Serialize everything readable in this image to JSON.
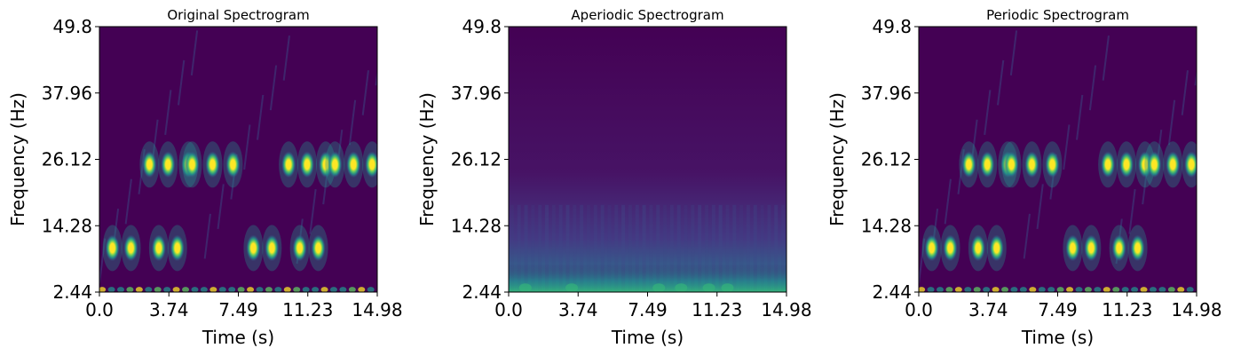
{
  "colors": {
    "background": "#440154",
    "low": "#482878",
    "mid": "#21918c",
    "high": "#fde725"
  },
  "chart_data": [
    {
      "type": "heatmap",
      "title": "Original Spectrogram",
      "xlabel": "Time (s)",
      "ylabel": "Frequency (Hz)",
      "xlim": [
        0.0,
        14.98
      ],
      "ylim": [
        2.44,
        49.8
      ],
      "xticks": [
        "0.0",
        "3.74",
        "7.49",
        "11.23",
        "14.98"
      ],
      "yticks": [
        "2.44",
        "14.28",
        "26.12",
        "37.96",
        "49.8"
      ],
      "colormap": "viridis",
      "bursts": [
        {
          "t": 0.7,
          "f": 10.3
        },
        {
          "t": 1.7,
          "f": 10.3
        },
        {
          "t": 3.2,
          "f": 10.3
        },
        {
          "t": 4.2,
          "f": 10.3
        },
        {
          "t": 8.3,
          "f": 10.3
        },
        {
          "t": 9.3,
          "f": 10.3
        },
        {
          "t": 10.8,
          "f": 10.3
        },
        {
          "t": 11.8,
          "f": 10.3
        },
        {
          "t": 2.7,
          "f": 25.2
        },
        {
          "t": 3.7,
          "f": 25.2
        },
        {
          "t": 4.8,
          "f": 25.2
        },
        {
          "t": 5.0,
          "f": 25.2
        },
        {
          "t": 6.1,
          "f": 25.2
        },
        {
          "t": 7.2,
          "f": 25.2
        },
        {
          "t": 10.2,
          "f": 25.2
        },
        {
          "t": 11.2,
          "f": 25.2
        },
        {
          "t": 12.2,
          "f": 25.2
        },
        {
          "t": 12.7,
          "f": 25.2
        },
        {
          "t": 13.7,
          "f": 25.2
        },
        {
          "t": 14.7,
          "f": 25.2
        }
      ]
    },
    {
      "type": "heatmap",
      "title": "Aperiodic Spectrogram",
      "xlabel": "Time (s)",
      "ylabel": "Frequency (Hz)",
      "xlim": [
        0.0,
        14.98
      ],
      "ylim": [
        2.44,
        49.8
      ],
      "xticks": [
        "0.0",
        "3.74",
        "7.49",
        "11.23",
        "14.98"
      ],
      "yticks": [
        "2.44",
        "14.28",
        "26.12",
        "37.96",
        "49.8"
      ],
      "colormap": "viridis",
      "bursts": []
    },
    {
      "type": "heatmap",
      "title": "Periodic Spectrogram",
      "xlabel": "Time (s)",
      "ylabel": "Frequency (Hz)",
      "xlim": [
        0.0,
        14.98
      ],
      "ylim": [
        2.44,
        49.8
      ],
      "xticks": [
        "0.0",
        "3.74",
        "7.49",
        "11.23",
        "14.98"
      ],
      "yticks": [
        "2.44",
        "14.28",
        "26.12",
        "37.96",
        "49.8"
      ],
      "colormap": "viridis",
      "bursts": [
        {
          "t": 0.7,
          "f": 10.3
        },
        {
          "t": 1.7,
          "f": 10.3
        },
        {
          "t": 3.2,
          "f": 10.3
        },
        {
          "t": 4.2,
          "f": 10.3
        },
        {
          "t": 8.3,
          "f": 10.3
        },
        {
          "t": 9.3,
          "f": 10.3
        },
        {
          "t": 10.8,
          "f": 10.3
        },
        {
          "t": 11.8,
          "f": 10.3
        },
        {
          "t": 2.7,
          "f": 25.2
        },
        {
          "t": 3.7,
          "f": 25.2
        },
        {
          "t": 4.8,
          "f": 25.2
        },
        {
          "t": 5.0,
          "f": 25.2
        },
        {
          "t": 6.1,
          "f": 25.2
        },
        {
          "t": 7.2,
          "f": 25.2
        },
        {
          "t": 10.2,
          "f": 25.2
        },
        {
          "t": 11.2,
          "f": 25.2
        },
        {
          "t": 12.2,
          "f": 25.2
        },
        {
          "t": 12.7,
          "f": 25.2
        },
        {
          "t": 13.7,
          "f": 25.2
        },
        {
          "t": 14.7,
          "f": 25.2
        }
      ]
    }
  ]
}
